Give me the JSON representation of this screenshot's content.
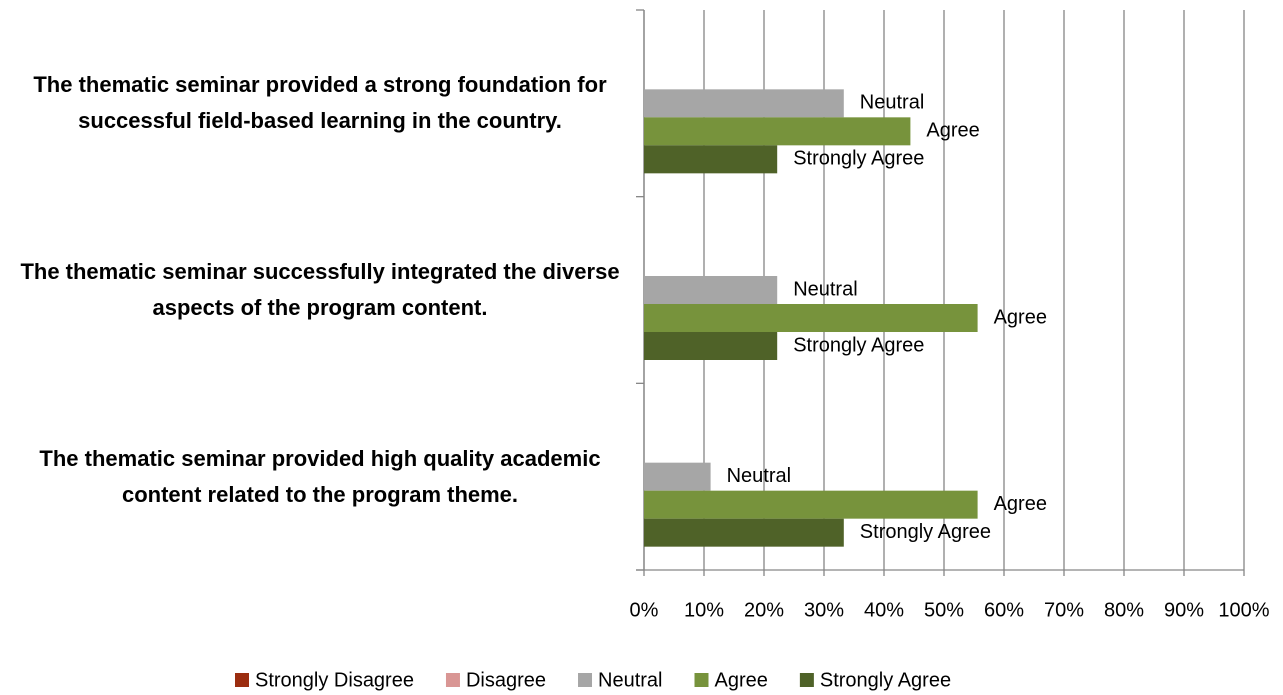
{
  "chart_data": {
    "type": "barh",
    "categories": [
      "The thematic seminar provided a strong foundation for successful field-based learning in the country.",
      "The thematic seminar successfully integrated the diverse aspects of the program content.",
      "The thematic seminar provided high quality academic content related to the program theme."
    ],
    "series": [
      {
        "name": "Strongly Disagree",
        "color": "#9b2d10",
        "values": [
          0,
          0,
          0
        ]
      },
      {
        "name": "Disagree",
        "color": "#d99694",
        "values": [
          0,
          0,
          0
        ]
      },
      {
        "name": "Neutral",
        "color": "#a6a6a6",
        "values": [
          33.3,
          22.2,
          11.1
        ]
      },
      {
        "name": "Agree",
        "color": "#77933c",
        "values": [
          44.4,
          55.6,
          55.6
        ]
      },
      {
        "name": "Strongly Agree",
        "color": "#4f6228",
        "values": [
          22.2,
          22.2,
          33.3
        ]
      }
    ],
    "xlim": [
      0,
      100
    ],
    "xticks": [
      {
        "value": 0,
        "label": "0%"
      },
      {
        "value": 10,
        "label": "10%"
      },
      {
        "value": 20,
        "label": "20%"
      },
      {
        "value": 30,
        "label": "30%"
      },
      {
        "value": 40,
        "label": "40%"
      },
      {
        "value": 50,
        "label": "50%"
      },
      {
        "value": 60,
        "label": "60%"
      },
      {
        "value": 70,
        "label": "70%"
      },
      {
        "value": 80,
        "label": "80%"
      },
      {
        "value": 90,
        "label": "90%"
      },
      {
        "value": 100,
        "label": "100%"
      }
    ],
    "grid": true,
    "legend": "bottom"
  }
}
